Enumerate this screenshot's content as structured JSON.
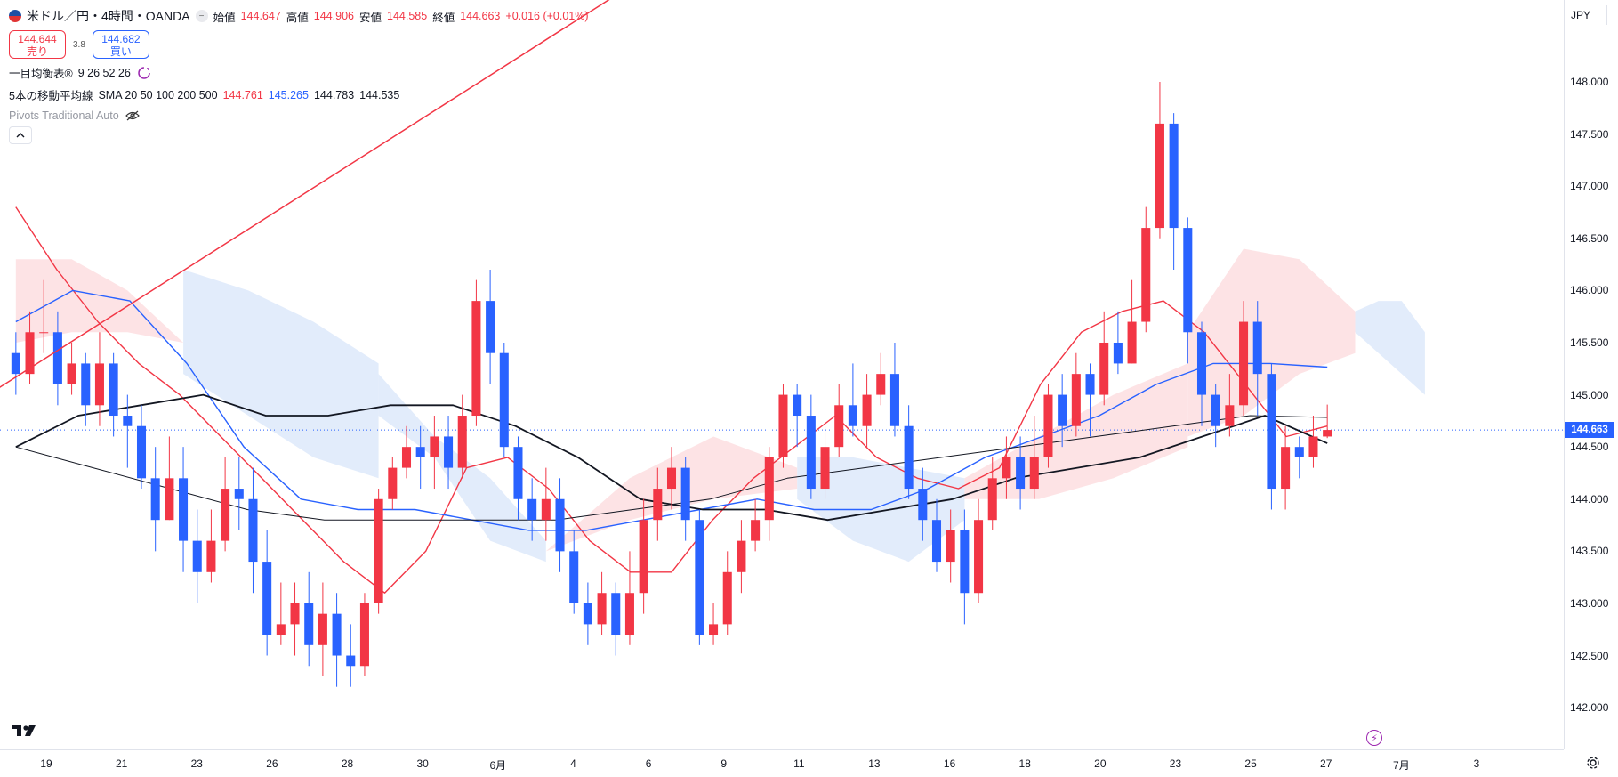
{
  "header": {
    "symbol_title": "米ドル／円・4時間・OANDA",
    "open_label": "始値",
    "open": "144.647",
    "high_label": "高値",
    "high": "144.906",
    "low_label": "安値",
    "low": "144.585",
    "close_label": "終値",
    "close": "144.663",
    "change": "+0.016 (+0.01%)"
  },
  "trade": {
    "sell_price": "144.644",
    "sell_label": "売り",
    "spread": "3.8",
    "buy_price": "144.682",
    "buy_label": "買い"
  },
  "indicators": {
    "ichimoku_name": "一目均衡表®",
    "ichimoku_params": "9 26 52 26",
    "ma_name": "5本の移動平均線",
    "ma_params": "SMA 20 50 100 200 500",
    "ma_v1": "144.761",
    "ma_v2": "145.265",
    "ma_v3": "144.783",
    "ma_v4": "144.535",
    "pivots_name": "Pivots Traditional Auto"
  },
  "price_axis": {
    "currency": "JPY",
    "ticks": [
      "148.000",
      "147.500",
      "147.000",
      "146.500",
      "146.000",
      "145.500",
      "145.000",
      "144.500",
      "144.000",
      "143.500",
      "143.000",
      "142.500",
      "142.000"
    ],
    "current_price": "144.663"
  },
  "time_axis": {
    "labels": [
      "19",
      "21",
      "23",
      "26",
      "28",
      "30",
      "6月",
      "4",
      "6",
      "9",
      "11",
      "13",
      "16",
      "18",
      "20",
      "23",
      "25",
      "27",
      "7月",
      "3"
    ]
  },
  "colors": {
    "up": "#f23645",
    "down": "#2962ff",
    "cloud_bull": "#fde0e2",
    "cloud_bear": "#dfeafb",
    "accent": "#2962ff"
  },
  "chart_data": {
    "type": "candlestick",
    "ylim": [
      141.6,
      148.7
    ],
    "candles": [
      [
        145.4,
        145.2,
        145.6,
        145.0
      ],
      [
        145.2,
        145.6,
        145.8,
        145.1
      ],
      [
        145.6,
        145.6,
        146.1,
        145.4
      ],
      [
        145.6,
        145.1,
        145.8,
        144.9
      ],
      [
        145.1,
        145.3,
        145.5,
        145.0
      ],
      [
        145.3,
        144.9,
        145.4,
        144.7
      ],
      [
        144.9,
        145.3,
        145.6,
        144.7
      ],
      [
        145.3,
        144.8,
        145.4,
        144.6
      ],
      [
        144.8,
        144.7,
        145.0,
        144.3
      ],
      [
        144.7,
        144.2,
        144.9,
        144.1
      ],
      [
        144.2,
        143.8,
        144.5,
        143.5
      ],
      [
        143.8,
        144.2,
        144.6,
        143.8
      ],
      [
        144.2,
        143.6,
        144.5,
        143.3
      ],
      [
        143.6,
        143.3,
        143.9,
        143.0
      ],
      [
        143.3,
        143.6,
        143.9,
        143.2
      ],
      [
        143.6,
        144.1,
        144.4,
        143.5
      ],
      [
        144.1,
        144.0,
        144.4,
        143.7
      ],
      [
        144.0,
        143.4,
        144.3,
        143.1
      ],
      [
        143.4,
        142.7,
        143.7,
        142.5
      ],
      [
        142.7,
        142.8,
        143.2,
        142.6
      ],
      [
        142.8,
        143.0,
        143.2,
        142.5
      ],
      [
        143.0,
        142.6,
        143.3,
        142.4
      ],
      [
        142.6,
        142.9,
        143.2,
        142.3
      ],
      [
        142.9,
        142.5,
        143.1,
        142.2
      ],
      [
        142.5,
        142.4,
        142.8,
        142.2
      ],
      [
        142.4,
        143.0,
        143.1,
        142.3
      ],
      [
        143.0,
        144.0,
        144.1,
        142.9
      ],
      [
        144.0,
        144.3,
        144.4,
        143.9
      ],
      [
        144.3,
        144.5,
        144.7,
        144.2
      ],
      [
        144.5,
        144.4,
        144.7,
        144.1
      ],
      [
        144.4,
        144.6,
        144.8,
        144.1
      ],
      [
        144.6,
        144.3,
        144.8,
        144.1
      ],
      [
        144.3,
        144.8,
        145.0,
        144.2
      ],
      [
        144.8,
        145.9,
        146.1,
        144.7
      ],
      [
        145.9,
        145.4,
        146.2,
        145.1
      ],
      [
        145.4,
        144.5,
        145.5,
        144.4
      ],
      [
        144.5,
        144.0,
        144.6,
        143.8
      ],
      [
        144.0,
        143.8,
        144.2,
        143.6
      ],
      [
        143.8,
        144.0,
        144.3,
        143.6
      ],
      [
        144.0,
        143.5,
        144.2,
        143.3
      ],
      [
        143.5,
        143.0,
        143.7,
        142.9
      ],
      [
        143.0,
        142.8,
        143.2,
        142.6
      ],
      [
        142.8,
        143.1,
        143.3,
        142.7
      ],
      [
        143.1,
        142.7,
        143.2,
        142.5
      ],
      [
        142.7,
        143.1,
        143.5,
        142.6
      ],
      [
        143.1,
        143.8,
        144.0,
        142.9
      ],
      [
        143.8,
        144.1,
        144.3,
        143.6
      ],
      [
        144.1,
        144.3,
        144.5,
        143.9
      ],
      [
        144.3,
        143.8,
        144.4,
        143.6
      ],
      [
        143.8,
        142.7,
        143.9,
        142.6
      ],
      [
        142.7,
        142.8,
        143.0,
        142.6
      ],
      [
        142.8,
        143.3,
        143.5,
        142.7
      ],
      [
        143.3,
        143.6,
        143.8,
        143.1
      ],
      [
        143.6,
        143.8,
        144.0,
        143.5
      ],
      [
        143.8,
        144.4,
        144.5,
        143.6
      ],
      [
        144.4,
        145.0,
        145.1,
        144.3
      ],
      [
        145.0,
        144.8,
        145.1,
        144.5
      ],
      [
        144.8,
        144.1,
        145.0,
        144.0
      ],
      [
        144.1,
        144.5,
        144.7,
        144.0
      ],
      [
        144.5,
        144.9,
        145.1,
        144.4
      ],
      [
        144.9,
        144.7,
        145.3,
        144.6
      ],
      [
        144.7,
        145.0,
        145.2,
        144.5
      ],
      [
        145.0,
        145.2,
        145.4,
        144.9
      ],
      [
        145.2,
        144.7,
        145.5,
        144.6
      ],
      [
        144.7,
        144.1,
        144.9,
        144.0
      ],
      [
        144.1,
        143.8,
        144.3,
        143.6
      ],
      [
        143.8,
        143.4,
        144.0,
        143.3
      ],
      [
        143.4,
        143.7,
        143.9,
        143.2
      ],
      [
        143.7,
        143.1,
        143.9,
        142.8
      ],
      [
        143.1,
        143.8,
        144.0,
        143.0
      ],
      [
        143.8,
        144.2,
        144.4,
        143.7
      ],
      [
        144.2,
        144.4,
        144.6,
        144.0
      ],
      [
        144.4,
        144.1,
        144.6,
        143.9
      ],
      [
        144.1,
        144.4,
        144.8,
        144.0
      ],
      [
        144.4,
        145.0,
        145.1,
        144.3
      ],
      [
        145.0,
        144.7,
        145.2,
        144.5
      ],
      [
        144.7,
        145.2,
        145.4,
        144.6
      ],
      [
        145.2,
        145.0,
        145.3,
        144.6
      ],
      [
        145.0,
        145.5,
        145.8,
        144.9
      ],
      [
        145.5,
        145.3,
        145.8,
        145.2
      ],
      [
        145.3,
        145.7,
        146.1,
        145.3
      ],
      [
        145.7,
        146.6,
        146.8,
        145.6
      ],
      [
        146.6,
        147.6,
        148.0,
        146.5
      ],
      [
        147.6,
        146.6,
        147.7,
        146.2
      ],
      [
        146.6,
        145.6,
        146.7,
        145.3
      ],
      [
        145.6,
        145.0,
        145.7,
        144.7
      ],
      [
        145.0,
        144.7,
        145.1,
        144.5
      ],
      [
        144.7,
        144.9,
        145.2,
        144.6
      ],
      [
        144.9,
        145.7,
        145.9,
        144.8
      ],
      [
        145.7,
        145.2,
        145.9,
        144.8
      ],
      [
        145.2,
        144.1,
        145.3,
        143.9
      ],
      [
        144.1,
        144.5,
        144.7,
        143.9
      ],
      [
        144.5,
        144.4,
        144.6,
        144.2
      ],
      [
        144.4,
        144.6,
        144.8,
        144.3
      ],
      [
        144.6,
        144.663,
        144.906,
        144.585
      ]
    ],
    "cloud": [
      {
        "from": 0,
        "to": 12,
        "kind": "bull",
        "top": [
          146.3,
          146.3,
          146.0,
          145.5
        ],
        "bot": [
          145.5,
          145.6,
          145.6,
          145.5
        ]
      },
      {
        "from": 12,
        "to": 26,
        "kind": "bear",
        "top": [
          146.2,
          146.0,
          145.7,
          145.3
        ],
        "bot": [
          145.2,
          144.8,
          144.4,
          144.2
        ]
      },
      {
        "from": 26,
        "to": 38,
        "kind": "bear",
        "top": [
          145.2,
          144.6,
          144.2,
          143.6
        ],
        "bot": [
          144.8,
          144.4,
          143.6,
          143.4
        ]
      },
      {
        "from": 38,
        "to": 56,
        "kind": "bull",
        "top": [
          143.5,
          144.2,
          144.6,
          144.3
        ],
        "bot": [
          143.5,
          143.8,
          144.0,
          144.1
        ]
      },
      {
        "from": 56,
        "to": 68,
        "kind": "bear",
        "top": [
          144.4,
          144.4,
          144.3,
          144.2
        ],
        "bot": [
          144.0,
          143.6,
          143.4,
          143.8
        ]
      },
      {
        "from": 68,
        "to": 84,
        "kind": "bull",
        "top": [
          144.2,
          144.6,
          145.0,
          145.3
        ],
        "bot": [
          144.0,
          144.0,
          144.2,
          144.5
        ]
      },
      {
        "from": 84,
        "to": 96,
        "kind": "bull",
        "top": [
          145.6,
          146.4,
          146.3,
          145.8
        ],
        "bot": [
          144.6,
          144.8,
          145.2,
          145.4
        ]
      },
      {
        "from": 96,
        "to": 101,
        "kind": "bear",
        "top": [
          145.8,
          145.9,
          145.9,
          145.6
        ],
        "bot": [
          145.6,
          145.4,
          145.2,
          145.0
        ]
      }
    ],
    "ma_lines": [
      {
        "name": "SMA20",
        "color": "#f23645",
        "width": 1.4,
        "points": [
          146.8,
          146.2,
          145.7,
          145.3,
          145.0,
          144.6,
          144.2,
          143.8,
          143.4,
          143.1,
          143.5,
          144.3,
          144.4,
          144.1,
          143.6,
          143.3,
          143.3,
          143.8,
          144.2,
          144.5,
          144.8,
          144.4,
          144.2,
          144.1,
          144.3,
          145.1,
          145.6,
          145.8,
          145.9,
          145.6,
          145.1,
          144.6,
          144.7
        ]
      },
      {
        "name": "SMA50",
        "color": "#2962ff",
        "width": 1.4,
        "points": [
          145.7,
          146.0,
          145.9,
          145.3,
          144.5,
          144.0,
          143.9,
          143.9,
          143.8,
          143.7,
          143.7,
          143.8,
          143.9,
          144.0,
          143.9,
          143.9,
          144.1,
          144.4,
          144.6,
          144.8,
          145.1,
          145.3,
          145.3,
          145.265
        ]
      },
      {
        "name": "SMA100",
        "color": "#131722",
        "width": 1.0,
        "points": [
          144.5,
          144.3,
          144.1,
          143.9,
          143.8,
          143.8,
          143.8,
          143.8,
          143.9,
          144.0,
          144.2,
          144.3,
          144.4,
          144.5,
          144.6,
          144.7,
          144.8,
          144.783
        ]
      },
      {
        "name": "SMA200",
        "color": "#131722",
        "width": 1.8,
        "points": [
          144.5,
          144.8,
          144.9,
          145.0,
          144.8,
          144.8,
          144.9,
          144.9,
          144.7,
          144.4,
          144.0,
          143.9,
          143.9,
          143.8,
          143.9,
          144.0,
          144.2,
          144.3,
          144.4,
          144.6,
          144.8,
          144.535
        ]
      }
    ],
    "trendline": {
      "color": "#f23645",
      "from": [
        -2,
        145.0
      ],
      "to": [
        45,
        149.0
      ]
    },
    "current_price": 144.663
  }
}
